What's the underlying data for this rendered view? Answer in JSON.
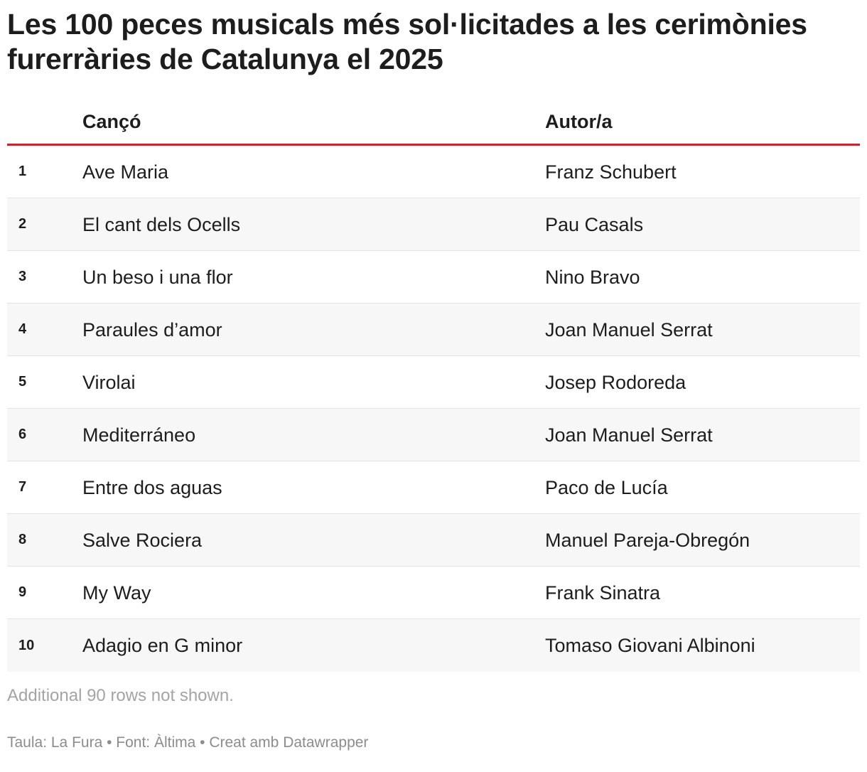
{
  "title": "Les 100 peces musicals més sol·licitades a les cerimònies furerràries de Catalunya el 2025",
  "table": {
    "headers": {
      "rank": "",
      "song": "Cançó",
      "author": "Autor/a"
    },
    "rows": [
      {
        "rank": "1",
        "song": "Ave Maria",
        "author": "Franz Schubert"
      },
      {
        "rank": "2",
        "song": "El cant dels Ocells",
        "author": "Pau Casals"
      },
      {
        "rank": "3",
        "song": "Un beso i una flor",
        "author": "Nino Bravo"
      },
      {
        "rank": "4",
        "song": "Paraules d’amor",
        "author": "Joan Manuel Serrat"
      },
      {
        "rank": "5",
        "song": "Virolai",
        "author": "Josep Rodoreda"
      },
      {
        "rank": "6",
        "song": "Mediterráneo",
        "author": "Joan Manuel Serrat"
      },
      {
        "rank": "7",
        "song": "Entre dos aguas",
        "author": "Paco de Lucía"
      },
      {
        "rank": "8",
        "song": "Salve Rociera",
        "author": "Manuel Pareja-Obregón"
      },
      {
        "rank": "9",
        "song": "My Way",
        "author": "Frank Sinatra"
      },
      {
        "rank": "10",
        "song": "Adagio en G minor",
        "author": "Tomaso Giovani Albinoni"
      }
    ]
  },
  "note": "Additional 90 rows not shown.",
  "footer": "Taula: La Fura • Font: Àltima • Creat amb Datawrapper",
  "colors": {
    "header_rule": "#c6262e",
    "row_alt_bg": "#f7f7f7",
    "row_divider": "#e3e3e3",
    "text": "#1d1d1d",
    "muted": "#a4a4a4"
  }
}
